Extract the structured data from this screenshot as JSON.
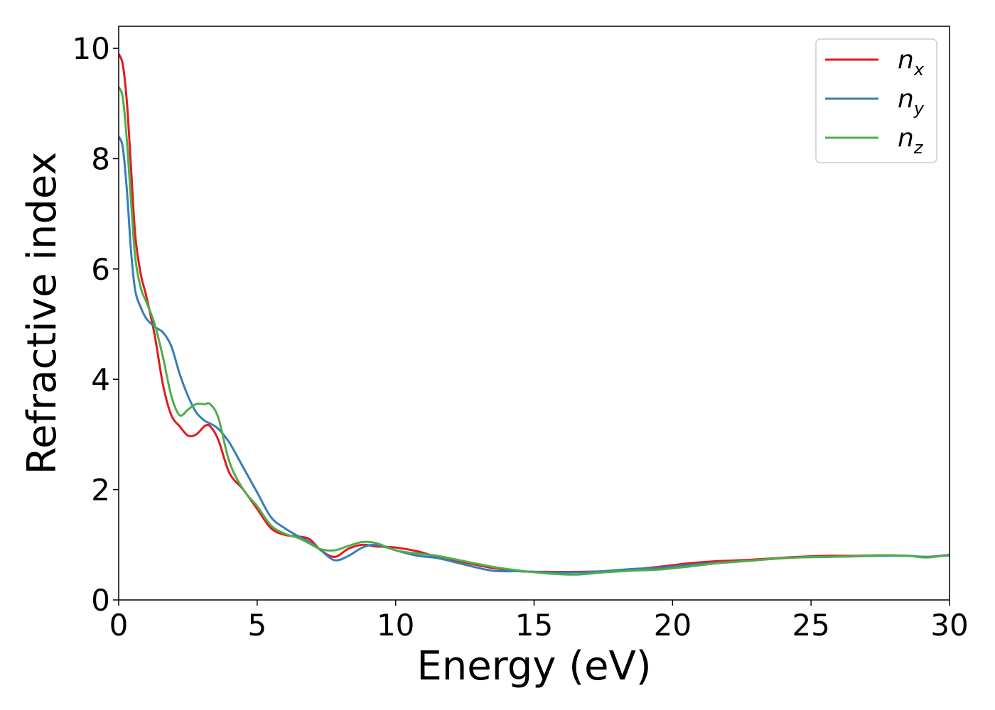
{
  "chart_data": {
    "type": "line",
    "xlabel": "Energy (eV)",
    "ylabel": "Refractive index",
    "xlim": [
      0,
      30
    ],
    "ylim": [
      0,
      10.4
    ],
    "xticks": [
      0,
      5,
      10,
      15,
      20,
      25,
      30
    ],
    "yticks": [
      0,
      2,
      4,
      6,
      8,
      10
    ],
    "xtick_labels": [
      "0",
      "5",
      "10",
      "15",
      "20",
      "25",
      "30"
    ],
    "ytick_labels": [
      "0",
      "2",
      "4",
      "6",
      "8",
      "10"
    ],
    "grid": false,
    "legend_position": "top-right",
    "series": [
      {
        "name": "n_x",
        "label_base": "n",
        "label_sub": "x",
        "color": "#e41a1c",
        "x": [
          0.0,
          0.15,
          0.3,
          0.45,
          0.6,
          0.8,
          1.0,
          1.3,
          1.6,
          1.9,
          2.2,
          2.5,
          2.8,
          3.1,
          3.3,
          3.6,
          4.0,
          4.5,
          5.0,
          5.5,
          6.0,
          6.5,
          6.9,
          7.3,
          7.8,
          8.3,
          8.8,
          9.3,
          10.0,
          10.8,
          11.5,
          12.5,
          13.5,
          14.5,
          15.5,
          16.5,
          17.5,
          18.5,
          19.5,
          20.5,
          21.5,
          22.5,
          23.5,
          24.5,
          25.5,
          26.5,
          27.5,
          28.5,
          29.2,
          30.0
        ],
        "y": [
          9.9,
          9.7,
          9.0,
          7.8,
          6.6,
          5.9,
          5.5,
          4.8,
          3.9,
          3.35,
          3.15,
          2.98,
          3.0,
          3.15,
          3.15,
          2.9,
          2.3,
          2.0,
          1.65,
          1.3,
          1.18,
          1.15,
          1.1,
          0.9,
          0.78,
          0.93,
          1.0,
          0.97,
          0.95,
          0.88,
          0.78,
          0.68,
          0.58,
          0.52,
          0.51,
          0.51,
          0.52,
          0.55,
          0.6,
          0.66,
          0.7,
          0.72,
          0.75,
          0.78,
          0.8,
          0.8,
          0.81,
          0.8,
          0.78,
          0.82
        ]
      },
      {
        "name": "n_y",
        "label_base": "n",
        "label_sub": "y",
        "color": "#377eb8",
        "x": [
          0.0,
          0.15,
          0.3,
          0.45,
          0.6,
          0.8,
          1.0,
          1.3,
          1.6,
          1.9,
          2.2,
          2.5,
          2.8,
          3.1,
          3.3,
          3.6,
          4.0,
          4.5,
          5.0,
          5.5,
          6.0,
          6.5,
          6.9,
          7.3,
          7.8,
          8.3,
          8.8,
          9.3,
          10.0,
          10.8,
          11.5,
          12.5,
          13.5,
          14.5,
          15.5,
          16.5,
          17.5,
          18.5,
          19.5,
          20.5,
          21.5,
          22.5,
          23.5,
          24.5,
          25.5,
          26.5,
          27.5,
          28.5,
          29.2,
          30.0
        ],
        "y": [
          8.4,
          8.2,
          7.4,
          6.3,
          5.6,
          5.3,
          5.1,
          4.95,
          4.85,
          4.6,
          4.1,
          3.7,
          3.4,
          3.25,
          3.2,
          3.1,
          2.85,
          2.4,
          1.95,
          1.5,
          1.3,
          1.15,
          1.05,
          0.9,
          0.72,
          0.8,
          0.95,
          1.0,
          0.9,
          0.8,
          0.76,
          0.64,
          0.53,
          0.52,
          0.5,
          0.5,
          0.52,
          0.56,
          0.58,
          0.63,
          0.67,
          0.7,
          0.74,
          0.77,
          0.78,
          0.79,
          0.8,
          0.8,
          0.78,
          0.81
        ]
      },
      {
        "name": "n_z",
        "label_base": "n",
        "label_sub": "z",
        "color": "#4daf4a",
        "x": [
          0.0,
          0.15,
          0.3,
          0.45,
          0.6,
          0.8,
          1.0,
          1.3,
          1.6,
          1.9,
          2.2,
          2.5,
          2.8,
          3.1,
          3.3,
          3.6,
          4.0,
          4.5,
          5.0,
          5.5,
          6.0,
          6.5,
          6.9,
          7.3,
          7.8,
          8.3,
          8.8,
          9.3,
          10.0,
          10.8,
          11.5,
          12.5,
          13.5,
          14.5,
          15.5,
          16.5,
          17.5,
          18.5,
          19.5,
          20.5,
          21.5,
          22.5,
          23.5,
          24.5,
          25.5,
          26.5,
          27.5,
          28.5,
          29.2,
          30.0
        ],
        "y": [
          9.3,
          9.1,
          8.3,
          7.2,
          6.2,
          5.65,
          5.4,
          5.0,
          4.4,
          3.7,
          3.35,
          3.45,
          3.55,
          3.55,
          3.55,
          3.3,
          2.5,
          2.0,
          1.7,
          1.35,
          1.2,
          1.12,
          1.02,
          0.92,
          0.9,
          0.98,
          1.05,
          1.03,
          0.9,
          0.84,
          0.8,
          0.7,
          0.6,
          0.53,
          0.48,
          0.46,
          0.5,
          0.53,
          0.55,
          0.6,
          0.66,
          0.7,
          0.74,
          0.77,
          0.78,
          0.79,
          0.81,
          0.8,
          0.77,
          0.82
        ]
      }
    ]
  }
}
